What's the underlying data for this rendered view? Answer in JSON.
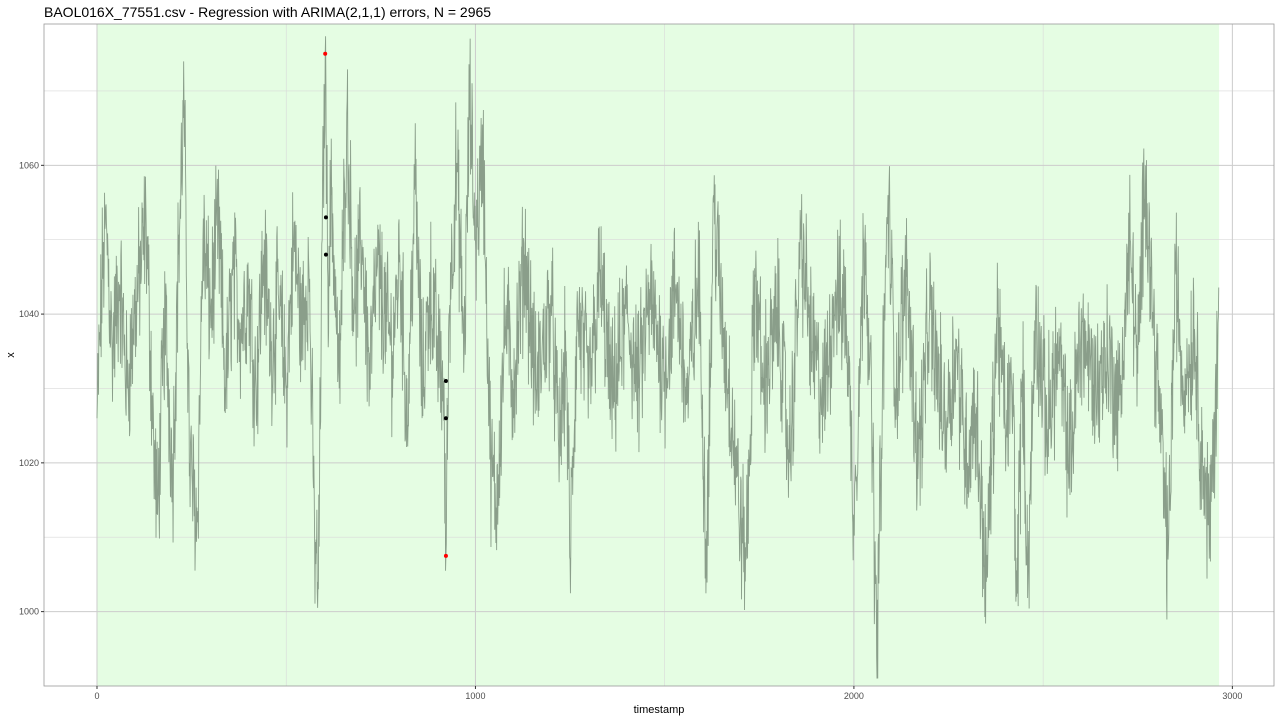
{
  "chart_data": {
    "type": "line",
    "title": "BAOL016X_77551.csv - Regression with ARIMA(2,1,1) errors, N = 2965",
    "xlabel": "timestamp",
    "ylabel": "x",
    "xlim": [
      -140,
      3110
    ],
    "ylim": [
      990,
      1079
    ],
    "x_ticks": [
      0,
      1000,
      2000,
      3000
    ],
    "x_tick_labels": [
      "0",
      "1000",
      "2000",
      "3000"
    ],
    "y_ticks": [
      1000,
      1020,
      1040,
      1060
    ],
    "y_tick_labels": [
      "1000",
      "1020",
      "1040",
      "1060"
    ],
    "grid": true,
    "shaded_region": {
      "x_start": 0,
      "x_end": 2965,
      "color": "#e5fde3"
    },
    "series_color": "#8a9e8a",
    "n": 2965,
    "series": [
      {
        "keypoints": [
          [
            0,
            1026
          ],
          [
            15,
            1046
          ],
          [
            25,
            1052
          ],
          [
            40,
            1035
          ],
          [
            60,
            1044
          ],
          [
            80,
            1030
          ],
          [
            100,
            1040
          ],
          [
            130,
            1052
          ],
          [
            150,
            1022
          ],
          [
            160,
            1013
          ],
          [
            180,
            1040
          ],
          [
            200,
            1018
          ],
          [
            215,
            1048
          ],
          [
            230,
            1068
          ],
          [
            245,
            1020
          ],
          [
            265,
            1012
          ],
          [
            280,
            1050
          ],
          [
            300,
            1040
          ],
          [
            320,
            1052
          ],
          [
            340,
            1030
          ],
          [
            360,
            1046
          ],
          [
            380,
            1038
          ],
          [
            400,
            1044
          ],
          [
            420,
            1030
          ],
          [
            440,
            1048
          ],
          [
            460,
            1035
          ],
          [
            480,
            1042
          ],
          [
            500,
            1030
          ],
          [
            520,
            1050
          ],
          [
            540,
            1038
          ],
          [
            560,
            1046
          ],
          [
            575,
            1010
          ],
          [
            585,
            1003
          ],
          [
            595,
            1050
          ],
          [
            603,
            1075
          ],
          [
            610,
            1045
          ],
          [
            620,
            1056
          ],
          [
            640,
            1030
          ],
          [
            660,
            1067
          ],
          [
            680,
            1040
          ],
          [
            700,
            1050
          ],
          [
            720,
            1032
          ],
          [
            740,
            1046
          ],
          [
            760,
            1040
          ],
          [
            780,
            1035
          ],
          [
            800,
            1048
          ],
          [
            820,
            1025
          ],
          [
            840,
            1058
          ],
          [
            860,
            1030
          ],
          [
            880,
            1044
          ],
          [
            900,
            1035
          ],
          [
            915,
            1031
          ],
          [
            922,
            1007.5
          ],
          [
            930,
            1040
          ],
          [
            950,
            1060
          ],
          [
            970,
            1035
          ],
          [
            985,
            1069
          ],
          [
            1000,
            1050
          ],
          [
            1020,
            1062
          ],
          [
            1040,
            1020
          ],
          [
            1055,
            1014
          ],
          [
            1080,
            1040
          ],
          [
            1100,
            1030
          ],
          [
            1130,
            1048
          ],
          [
            1160,
            1030
          ],
          [
            1200,
            1042
          ],
          [
            1220,
            1022
          ],
          [
            1240,
            1035
          ],
          [
            1250,
            1007
          ],
          [
            1270,
            1040
          ],
          [
            1300,
            1030
          ],
          [
            1330,
            1045
          ],
          [
            1360,
            1028
          ],
          [
            1400,
            1040
          ],
          [
            1430,
            1030
          ],
          [
            1460,
            1042
          ],
          [
            1500,
            1032
          ],
          [
            1530,
            1044
          ],
          [
            1560,
            1028
          ],
          [
            1590,
            1045
          ],
          [
            1610,
            1008
          ],
          [
            1630,
            1055
          ],
          [
            1650,
            1040
          ],
          [
            1680,
            1025
          ],
          [
            1700,
            1012
          ],
          [
            1715,
            1007
          ],
          [
            1740,
            1045
          ],
          [
            1760,
            1030
          ],
          [
            1800,
            1040
          ],
          [
            1830,
            1020
          ],
          [
            1860,
            1050
          ],
          [
            1890,
            1035
          ],
          [
            1920,
            1028
          ],
          [
            1950,
            1043
          ],
          [
            1980,
            1040
          ],
          [
            2000,
            1013
          ],
          [
            2030,
            1052
          ],
          [
            2050,
            1020
          ],
          [
            2060,
            994
          ],
          [
            2075,
            1028
          ],
          [
            2090,
            1056
          ],
          [
            2110,
            1030
          ],
          [
            2140,
            1045
          ],
          [
            2170,
            1020
          ],
          [
            2200,
            1040
          ],
          [
            2240,
            1025
          ],
          [
            2270,
            1035
          ],
          [
            2300,
            1020
          ],
          [
            2320,
            1028
          ],
          [
            2350,
            1004
          ],
          [
            2380,
            1040
          ],
          [
            2400,
            1025
          ],
          [
            2420,
            1030
          ],
          [
            2430,
            1002
          ],
          [
            2445,
            1032
          ],
          [
            2460,
            1005
          ],
          [
            2480,
            1040
          ],
          [
            2510,
            1025
          ],
          [
            2540,
            1035
          ],
          [
            2570,
            1020
          ],
          [
            2600,
            1038
          ],
          [
            2640,
            1030
          ],
          [
            2670,
            1035
          ],
          [
            2700,
            1027
          ],
          [
            2730,
            1050
          ],
          [
            2750,
            1032
          ],
          [
            2770,
            1060
          ],
          [
            2790,
            1040
          ],
          [
            2810,
            1025
          ],
          [
            2830,
            1007
          ],
          [
            2850,
            1046
          ],
          [
            2870,
            1030
          ],
          [
            2900,
            1038
          ],
          [
            2920,
            1020
          ],
          [
            2940,
            1011
          ],
          [
            2965,
            1038
          ]
        ]
      }
    ],
    "point_markers": [
      {
        "x": 603,
        "y": 1075,
        "color": "#ff0000"
      },
      {
        "x": 605,
        "y": 1053,
        "color": "#000000"
      },
      {
        "x": 605,
        "y": 1048,
        "color": "#000000"
      },
      {
        "x": 922,
        "y": 1031,
        "color": "#000000"
      },
      {
        "x": 922,
        "y": 1026,
        "color": "#000000"
      },
      {
        "x": 922,
        "y": 1007.5,
        "color": "#ff0000"
      }
    ]
  }
}
